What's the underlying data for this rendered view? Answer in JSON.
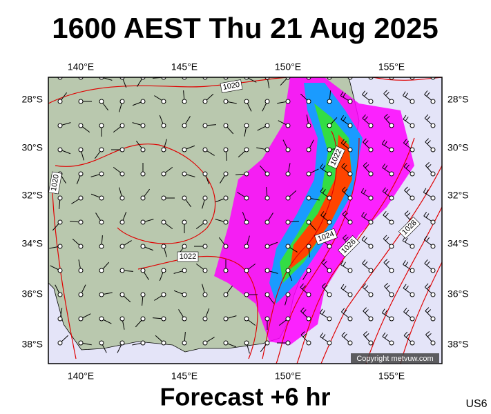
{
  "header": {
    "title": "1600 AEST Thu 21 Aug 2025"
  },
  "map": {
    "lon_labels": [
      "140°E",
      "145°E",
      "150°E",
      "155°E"
    ],
    "lat_labels": [
      "28°S",
      "30°S",
      "32°S",
      "34°S",
      "36°S",
      "38°S"
    ],
    "isobar_labels": [
      "1020",
      "1020",
      "1022",
      "1022",
      "1024",
      "1026",
      "1028"
    ],
    "copyright": "Copyright metvuw.com"
  },
  "footer": {
    "caption": "Forecast +6 hr",
    "model": "US6"
  }
}
